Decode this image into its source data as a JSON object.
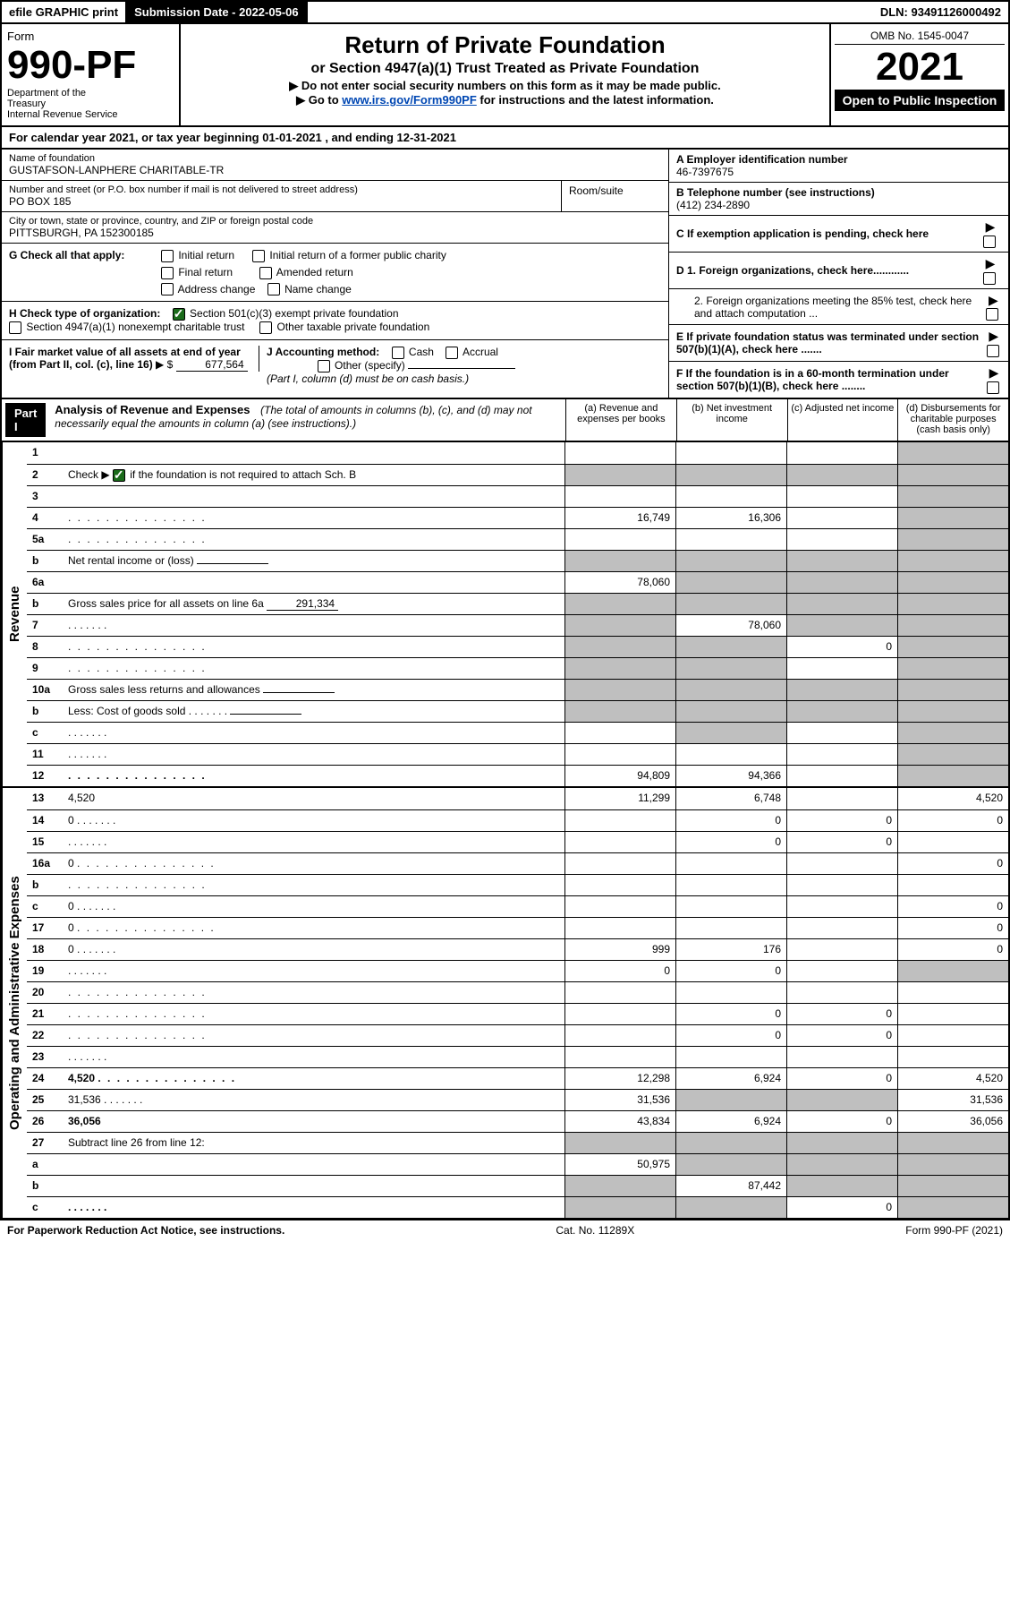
{
  "topbar": {
    "efile": "efile GRAPHIC print",
    "subdate_label": "Submission Date - ",
    "subdate": "2022-05-06",
    "dln_label": "DLN: ",
    "dln": "93491126000492"
  },
  "header": {
    "form_word": "Form",
    "form_num": "990-PF",
    "dept1": "Department of the",
    "dept2": "Treasury",
    "dept3": "Internal Revenue Service",
    "title": "Return of Private Foundation",
    "subtitle": "or Section 4947(a)(1) Trust Treated as Private Foundation",
    "note1": "▶ Do not enter social security numbers on this form as it may be made public.",
    "note2_a": "▶ Go to ",
    "note2_link": "www.irs.gov/Form990PF",
    "note2_b": " for instructions and the latest information.",
    "omb": "OMB No. 1545-0047",
    "year": "2021",
    "open": "Open to Public Inspection"
  },
  "calyear": "For calendar year 2021, or tax year beginning 01-01-2021          , and ending 12-31-2021",
  "name": {
    "label": "Name of foundation",
    "value": "GUSTAFSON-LANPHERE CHARITABLE-TR"
  },
  "addr": {
    "label": "Number and street (or P.O. box number if mail is not delivered to street address)",
    "value": "PO BOX 185",
    "room_label": "Room/suite"
  },
  "city": {
    "label": "City or town, state or province, country, and ZIP or foreign postal code",
    "value": "PITTSBURGH, PA  152300185"
  },
  "ein": {
    "label": "A Employer identification number",
    "value": "46-7397675"
  },
  "phone": {
    "label": "B Telephone number (see instructions)",
    "value": "(412) 234-2890"
  },
  "c_label": "C If exemption application is pending, check here",
  "d1": "D 1. Foreign organizations, check here............",
  "d2": "2. Foreign organizations meeting the 85% test, check here and attach computation ...",
  "e_label": "E  If private foundation status was terminated under section 507(b)(1)(A), check here .......",
  "f_label": "F  If the foundation is in a 60-month termination under section 507(b)(1)(B), check here ........",
  "g": {
    "label": "G Check all that apply:",
    "opts": [
      "Initial return",
      "Initial return of a former public charity",
      "Final return",
      "Amended return",
      "Address change",
      "Name change"
    ]
  },
  "h": {
    "label": "H Check type of organization:",
    "opt1": "Section 501(c)(3) exempt private foundation",
    "opt2": "Section 4947(a)(1) nonexempt charitable trust",
    "opt3": "Other taxable private foundation"
  },
  "i": {
    "label": "I Fair market value of all assets at end of year (from Part II, col. (c), line 16)",
    "prefix": "▶ $",
    "value": "677,564"
  },
  "j": {
    "label": "J Accounting method:",
    "opt1": "Cash",
    "opt2": "Accrual",
    "opt3": "Other (specify)",
    "note": "(Part I, column (d) must be on cash basis.)"
  },
  "part1": {
    "label": "Part I",
    "title": "Analysis of Revenue and Expenses",
    "note": "(The total of amounts in columns (b), (c), and (d) may not necessarily equal the amounts in column (a) (see instructions).)",
    "cols": {
      "a": "(a)  Revenue and expenses per books",
      "b": "(b)  Net investment income",
      "c": "(c)  Adjusted net income",
      "d": "(d)  Disbursements for charitable purposes (cash basis only)"
    }
  },
  "sections": {
    "revenue": "Revenue",
    "expenses": "Operating and Administrative Expenses"
  },
  "rows": {
    "r1": {
      "n": "1",
      "d": "",
      "a": "",
      "b": "",
      "c": "",
      "shade_d": true
    },
    "r2": {
      "n": "2",
      "d_a": "Check ▶ ",
      "d_b": " if the foundation is not required to attach Sch. B",
      "checked": true,
      "a": "",
      "b": "",
      "c": "",
      "d": "",
      "shade_all": true
    },
    "r3": {
      "n": "3",
      "d": "",
      "a": "",
      "b": "",
      "c": "",
      "shade_d": true
    },
    "r4": {
      "n": "4",
      "d": "",
      "dots": true,
      "a": "16,749",
      "b": "16,306",
      "c": "",
      "shade_d": true
    },
    "r5a": {
      "n": "5a",
      "d": "",
      "dots": true,
      "a": "",
      "b": "",
      "c": "",
      "shade_d": true
    },
    "r5b": {
      "n": "b",
      "d": "Net rental income or (loss)",
      "inline": "",
      "shade_rest": true
    },
    "r6a": {
      "n": "6a",
      "d": "",
      "a": "78,060",
      "b": "",
      "c": "",
      "shade_bcd": true
    },
    "r6b": {
      "n": "b",
      "d": "Gross sales price for all assets on line 6a",
      "inline": "291,334",
      "shade_rest": true
    },
    "r7": {
      "n": "7",
      "d": "",
      "dots_s": true,
      "a": "",
      "b": "78,060",
      "c": "",
      "shade_a": true,
      "shade_cd": true
    },
    "r8": {
      "n": "8",
      "d": "",
      "dots": true,
      "a": "",
      "b": "",
      "c": "0",
      "shade_ab": true,
      "shade_d": true
    },
    "r9": {
      "n": "9",
      "d": "",
      "dots": true,
      "a": "",
      "b": "",
      "c": "",
      "shade_ab": true,
      "shade_d": true
    },
    "r10a": {
      "n": "10a",
      "d": "Gross sales less returns and allowances",
      "inline": "",
      "shade_rest": true
    },
    "r10b": {
      "n": "b",
      "d": "Less: Cost of goods sold",
      "dots_s": true,
      "inline": "",
      "shade_rest": true
    },
    "r10c": {
      "n": "c",
      "d": "",
      "dots_s": true,
      "a": "",
      "b": "",
      "c": "",
      "shade_b": true,
      "shade_d": true
    },
    "r11": {
      "n": "11",
      "d": "",
      "dots_s": true,
      "a": "",
      "b": "",
      "c": "",
      "shade_d": true
    },
    "r12": {
      "n": "12",
      "d": "",
      "dots": true,
      "bold": true,
      "a": "94,809",
      "b": "94,366",
      "c": "",
      "shade_d": true
    },
    "r13": {
      "n": "13",
      "d": "4,520",
      "a": "11,299",
      "b": "6,748",
      "c": ""
    },
    "r14": {
      "n": "14",
      "d": "0",
      "dots_s": true,
      "a": "",
      "b": "0",
      "c": "0"
    },
    "r15": {
      "n": "15",
      "d": "",
      "dots_s": true,
      "a": "",
      "b": "0",
      "c": "0"
    },
    "r16a": {
      "n": "16a",
      "d": "0",
      "dots": true,
      "a": "",
      "b": "",
      "c": ""
    },
    "r16b": {
      "n": "b",
      "d": "",
      "dots": true,
      "a": "",
      "b": "",
      "c": ""
    },
    "r16c": {
      "n": "c",
      "d": "0",
      "dots_s": true,
      "a": "",
      "b": "",
      "c": ""
    },
    "r17": {
      "n": "17",
      "d": "0",
      "dots": true,
      "a": "",
      "b": "",
      "c": ""
    },
    "r18": {
      "n": "18",
      "d": "0",
      "dots_s": true,
      "a": "999",
      "b": "176",
      "c": ""
    },
    "r19": {
      "n": "19",
      "d": "",
      "dots_s": true,
      "a": "0",
      "b": "0",
      "c": "",
      "shade_d": true
    },
    "r20": {
      "n": "20",
      "d": "",
      "dots": true,
      "a": "",
      "b": "",
      "c": ""
    },
    "r21": {
      "n": "21",
      "d": "",
      "dots": true,
      "a": "",
      "b": "0",
      "c": "0"
    },
    "r22": {
      "n": "22",
      "d": "",
      "dots": true,
      "a": "",
      "b": "0",
      "c": "0"
    },
    "r23": {
      "n": "23",
      "d": "",
      "dots_s": true,
      "a": "",
      "b": "",
      "c": ""
    },
    "r24": {
      "n": "24",
      "d": "4,520",
      "dots": true,
      "bold": true,
      "a": "12,298",
      "b": "6,924",
      "c": "0"
    },
    "r25": {
      "n": "25",
      "d": "31,536",
      "dots_s": true,
      "a": "31,536",
      "b": "",
      "c": "",
      "shade_bc": true
    },
    "r26": {
      "n": "26",
      "d": "36,056",
      "bold": true,
      "a": "43,834",
      "b": "6,924",
      "c": "0"
    },
    "r27": {
      "n": "27",
      "d": "Subtract line 26 from line 12:",
      "shade_all_v": true
    },
    "r27a": {
      "n": "a",
      "d": "",
      "bold": true,
      "a": "50,975",
      "b": "",
      "c": "",
      "shade_bcd": true
    },
    "r27b": {
      "n": "b",
      "d": "",
      "bold": true,
      "a": "",
      "b": "87,442",
      "c": "",
      "shade_a": true,
      "shade_cd": true
    },
    "r27c": {
      "n": "c",
      "d": "",
      "dots_s": true,
      "bold": true,
      "a": "",
      "b": "",
      "c": "0",
      "shade_ab": true,
      "shade_d": true
    }
  },
  "footer": {
    "left": "For Paperwork Reduction Act Notice, see instructions.",
    "mid": "Cat. No. 11289X",
    "right": "Form 990-PF (2021)"
  },
  "colors": {
    "link": "#0047b3",
    "shade": "#bfbfbf",
    "check": "#1a6b1a"
  }
}
